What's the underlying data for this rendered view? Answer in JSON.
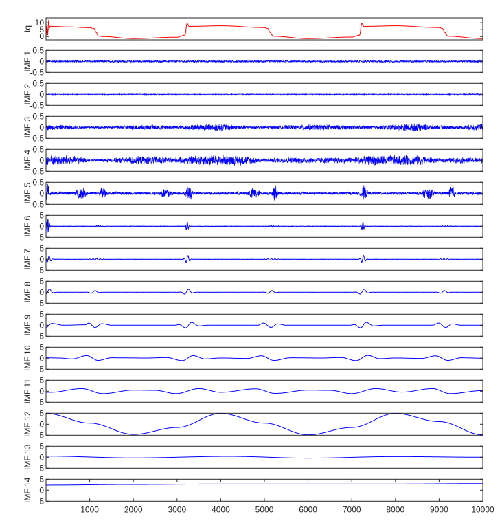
{
  "chart_data": {
    "type": "line",
    "title": "",
    "xlabel": "",
    "xlim": [
      0,
      10000
    ],
    "xticks": [
      1000,
      2000,
      3000,
      4000,
      5000,
      6000,
      7000,
      8000,
      9000,
      10000
    ],
    "grid": false,
    "panels": [
      {
        "label": "Iq",
        "color": "#ff0000",
        "ylim": [
          -2.4,
          13.6
        ],
        "yticks": [
          0,
          5,
          10
        ],
        "kind": "keypoints",
        "x": [
          0,
          20,
          40,
          60,
          80,
          100,
          200,
          500,
          1000,
          1100,
          1150,
          1200,
          1300,
          2000,
          3000,
          3180,
          3230,
          3280,
          3350,
          4000,
          5000,
          5080,
          5130,
          5200,
          6000,
          7000,
          7180,
          7230,
          7280,
          7350,
          8000,
          9000,
          9080,
          9130,
          9200,
          10000
        ],
        "y": [
          0,
          8,
          1,
          12,
          6,
          7.5,
          7.3,
          7.0,
          6.4,
          5.8,
          3,
          0.3,
          0,
          -1.5,
          -0.5,
          1,
          9.5,
          7.3,
          7.4,
          7.8,
          6.5,
          5.8,
          3,
          0.2,
          -1.5,
          -0.4,
          1,
          9.5,
          7.3,
          7.4,
          7.8,
          6.5,
          5.8,
          3,
          0.2,
          -1.5
        ]
      },
      {
        "label": "IMF 1",
        "color": "#0000ff",
        "ylim": [
          -0.5,
          0.5
        ],
        "yticks": [
          -0.5,
          0,
          0.5
        ],
        "kind": "noise",
        "envelope_step": 500,
        "envelope": [
          0.06,
          0.05,
          0.05,
          0.05,
          0.05,
          0.05,
          0.05,
          0.05,
          0.05,
          0.05,
          0.05,
          0.05,
          0.05,
          0.05,
          0.05,
          0.05,
          0.05,
          0.05,
          0.05,
          0.05,
          0.06
        ]
      },
      {
        "label": "IMF 2",
        "color": "#0000ff",
        "ylim": [
          -0.5,
          0.5
        ],
        "yticks": [
          -0.5,
          0,
          0.5
        ],
        "kind": "noise",
        "envelope_step": 500,
        "envelope": [
          0.02,
          0.02,
          0.02,
          0.02,
          0.02,
          0.02,
          0.02,
          0.02,
          0.02,
          0.02,
          0.02,
          0.02,
          0.02,
          0.02,
          0.02,
          0.02,
          0.02,
          0.02,
          0.02,
          0.02,
          0.03
        ]
      },
      {
        "label": "IMF 3",
        "color": "#0000ff",
        "ylim": [
          -0.5,
          0.5
        ],
        "yticks": [
          -0.5,
          0,
          0.5
        ],
        "kind": "noise",
        "envelope_step": 500,
        "envelope": [
          0.14,
          0.11,
          0.06,
          0.06,
          0.12,
          0.12,
          0.08,
          0.15,
          0.2,
          0.1,
          0.06,
          0.1,
          0.14,
          0.14,
          0.1,
          0.08,
          0.15,
          0.2,
          0.1,
          0.08,
          0.2
        ]
      },
      {
        "label": "IMF 4",
        "color": "#0000ff",
        "ylim": [
          -0.5,
          0.5
        ],
        "yticks": [
          -0.5,
          0,
          0.5
        ],
        "kind": "noise",
        "envelope_step": 500,
        "envelope": [
          0.25,
          0.26,
          0.08,
          0.1,
          0.2,
          0.2,
          0.14,
          0.26,
          0.25,
          0.24,
          0.08,
          0.15,
          0.15,
          0.15,
          0.15,
          0.25,
          0.25,
          0.24,
          0.1,
          0.15,
          0.13
        ]
      },
      {
        "label": "IMF 5",
        "color": "#0000ff",
        "ylim": [
          -0.5,
          0.5
        ],
        "yticks": [
          -0.5,
          0,
          0.5
        ],
        "kind": "noise",
        "envelope_step": 500,
        "envelope": [
          0.5,
          0.08,
          0.08,
          0.08,
          0.08,
          0.08,
          0.08,
          0.08,
          0.08,
          0.08,
          0.08,
          0.08,
          0.08,
          0.08,
          0.08,
          0.08,
          0.08,
          0.08,
          0.08,
          0.08,
          0.08
        ],
        "bursts": [
          {
            "x": 800,
            "amp": 0.3,
            "w": 150
          },
          {
            "x": 1300,
            "amp": 0.45,
            "w": 60
          },
          {
            "x": 2750,
            "amp": 0.3,
            "w": 150
          },
          {
            "x": 3280,
            "amp": 0.4,
            "w": 80
          },
          {
            "x": 4750,
            "amp": 0.3,
            "w": 150
          },
          {
            "x": 5250,
            "amp": 0.45,
            "w": 60
          },
          {
            "x": 7280,
            "amp": 0.4,
            "w": 80
          },
          {
            "x": 8750,
            "amp": 0.3,
            "w": 150
          },
          {
            "x": 9290,
            "amp": 0.5,
            "w": 60
          }
        ]
      },
      {
        "label": "IMF 6",
        "color": "#0000ff",
        "ylim": [
          -5,
          5
        ],
        "yticks": [
          -5,
          0,
          5
        ],
        "kind": "bursts",
        "noise": 0.08,
        "events": [
          {
            "x": 40,
            "amp": 3.5,
            "w": 40,
            "period": 35
          },
          {
            "x": 1200,
            "amp": 0.3,
            "w": 120,
            "period": 40
          },
          {
            "x": 3230,
            "amp": 2,
            "w": 40,
            "period": 50
          },
          {
            "x": 5200,
            "amp": 0.3,
            "w": 120,
            "period": 40
          },
          {
            "x": 7250,
            "amp": 2,
            "w": 40,
            "period": 50
          },
          {
            "x": 9150,
            "amp": 0.3,
            "w": 120,
            "period": 40
          }
        ]
      },
      {
        "label": "IMF 7",
        "color": "#0000ff",
        "ylim": [
          -5,
          5
        ],
        "yticks": [
          -5,
          0,
          5
        ],
        "kind": "bursts",
        "noise": 0.05,
        "events": [
          {
            "x": 60,
            "amp": 1.6,
            "w": 60,
            "period": 90
          },
          {
            "x": 1150,
            "amp": 0.4,
            "w": 120,
            "period": 80
          },
          {
            "x": 3240,
            "amp": 1.8,
            "w": 60,
            "period": 90
          },
          {
            "x": 5150,
            "amp": 0.4,
            "w": 120,
            "period": 80
          },
          {
            "x": 7260,
            "amp": 1.8,
            "w": 60,
            "period": 90
          },
          {
            "x": 9100,
            "amp": 0.4,
            "w": 120,
            "period": 80
          }
        ]
      },
      {
        "label": "IMF 8",
        "color": "#0000ff",
        "ylim": [
          -5,
          5
        ],
        "yticks": [
          -5,
          0,
          5
        ],
        "kind": "bursts",
        "noise": 0.03,
        "events": [
          {
            "x": 60,
            "amp": 1.5,
            "w": 90,
            "period": 220
          },
          {
            "x": 1100,
            "amp": 0.8,
            "w": 100,
            "period": 220
          },
          {
            "x": 3240,
            "amp": 1.5,
            "w": 100,
            "period": 220
          },
          {
            "x": 5150,
            "amp": 0.8,
            "w": 100,
            "period": 220
          },
          {
            "x": 7260,
            "amp": 1.5,
            "w": 100,
            "period": 220
          },
          {
            "x": 9100,
            "amp": 0.8,
            "w": 100,
            "period": 220
          }
        ]
      },
      {
        "label": "IMF 9",
        "color": "#0000ff",
        "ylim": [
          -5,
          5
        ],
        "yticks": [
          -5,
          0,
          5
        ],
        "kind": "keypoints",
        "x": [
          0,
          130,
          400,
          900,
          980,
          1120,
          1280,
          1500,
          2950,
          3050,
          3200,
          3330,
          3500,
          3700,
          4850,
          4980,
          5150,
          5300,
          5500,
          6950,
          7060,
          7200,
          7330,
          7500,
          7700,
          8850,
          8990,
          9150,
          9300,
          9500,
          10000
        ],
        "y": [
          -1,
          0.8,
          0,
          0.2,
          1,
          -1,
          0.7,
          0,
          0,
          0.3,
          -1.2,
          1.3,
          -0.3,
          0,
          0,
          1,
          -1,
          0.6,
          0,
          0,
          0.3,
          -1.2,
          1.3,
          -0.3,
          0,
          0,
          1,
          -1,
          0.6,
          0,
          0
        ]
      },
      {
        "label": "IMF 10",
        "color": "#0000ff",
        "ylim": [
          -5,
          5
        ],
        "yticks": [
          -5,
          0,
          5
        ],
        "kind": "keypoints",
        "x": [
          0,
          300,
          600,
          930,
          1190,
          1500,
          2300,
          2760,
          3120,
          3370,
          3640,
          4000,
          4600,
          4930,
          5220,
          5600,
          6300,
          6760,
          7100,
          7370,
          7640,
          8000,
          8600,
          8920,
          9200,
          9510,
          10000
        ],
        "y": [
          0.2,
          0.1,
          -0.3,
          1.2,
          -1,
          0.2,
          0.1,
          0.3,
          -1.1,
          1.2,
          -0.3,
          0.1,
          -0.1,
          1.1,
          -1,
          0.2,
          0.1,
          0.3,
          -1.1,
          1.3,
          -0.2,
          0.1,
          -0.1,
          1.1,
          -1,
          0.2,
          0
        ]
      },
      {
        "label": "IMF 11",
        "color": "#0000ff",
        "ylim": [
          -5,
          5
        ],
        "yticks": [
          -5,
          0,
          5
        ],
        "kind": "keypoints",
        "x": [
          0,
          100,
          820,
          1300,
          2000,
          2500,
          2980,
          3500,
          4000,
          4800,
          5250,
          6000,
          6500,
          7000,
          7550,
          8150,
          8850,
          9250,
          10000
        ],
        "y": [
          -0.5,
          -0.5,
          1.2,
          -1.1,
          0.5,
          0.4,
          -1.1,
          1.2,
          -0.5,
          1.1,
          -1.0,
          0.5,
          0.4,
          -1.1,
          1.2,
          -0.4,
          1.2,
          -1.1,
          0.3
        ]
      },
      {
        "label": "IMF 12",
        "color": "#0000ff",
        "ylim": [
          -5,
          5
        ],
        "yticks": [
          -5,
          0,
          5
        ],
        "kind": "keypoints",
        "x": [
          0,
          1000,
          2000,
          3000,
          4000,
          5000,
          6000,
          7000,
          8000,
          9000,
          10000
        ],
        "y": [
          4.9,
          0.5,
          -4.6,
          -1.5,
          4.9,
          0.5,
          -4.8,
          -1.5,
          4.9,
          1.2,
          -4.8
        ]
      },
      {
        "label": "IMF 13",
        "color": "#0000ff",
        "ylim": [
          -5,
          5
        ],
        "yticks": [
          -5,
          0,
          5
        ],
        "kind": "keypoints",
        "x": [
          0,
          2000,
          4200,
          6000,
          8000,
          10000
        ],
        "y": [
          0.5,
          -0.3,
          0.4,
          -0.4,
          0.3,
          0
        ]
      },
      {
        "label": "IMF 14",
        "color": "#0000ff",
        "ylim": [
          -5,
          5
        ],
        "yticks": [
          -5,
          0,
          5
        ],
        "kind": "keypoints",
        "x": [
          0,
          2000,
          4000,
          6000,
          8000,
          10000
        ],
        "y": [
          2.3,
          2.6,
          2.8,
          2.8,
          2.8,
          3.0
        ]
      }
    ]
  }
}
